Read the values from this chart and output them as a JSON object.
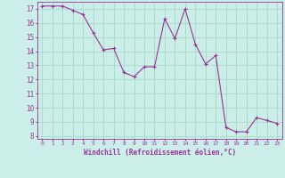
{
  "x": [
    0,
    1,
    2,
    3,
    4,
    5,
    6,
    7,
    8,
    9,
    10,
    11,
    12,
    13,
    14,
    15,
    16,
    17,
    18,
    19,
    20,
    21,
    22,
    23
  ],
  "y": [
    17.2,
    17.2,
    17.2,
    16.9,
    16.6,
    15.3,
    14.1,
    14.2,
    12.5,
    12.2,
    12.9,
    12.9,
    16.3,
    14.9,
    17.0,
    14.5,
    13.1,
    13.7,
    8.6,
    8.3,
    8.3,
    9.3,
    9.1,
    8.9
  ],
  "line_color": "#993399",
  "marker": "+",
  "bg_color": "#cceee8",
  "grid_color": "#aaddcc",
  "xlabel": "Windchill (Refroidissement éolien,°C)",
  "xlabel_color": "#993399",
  "tick_color": "#993399",
  "ylabel_ticks": [
    8,
    9,
    10,
    11,
    12,
    13,
    14,
    15,
    16,
    17
  ],
  "ylim": [
    7.8,
    17.5
  ],
  "xlim": [
    -0.5,
    23.5
  ]
}
